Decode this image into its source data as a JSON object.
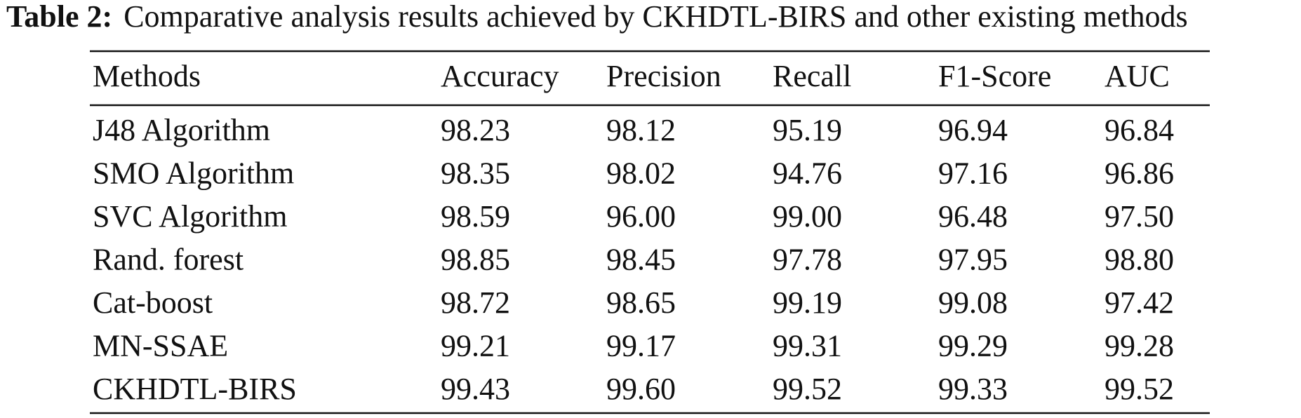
{
  "caption": {
    "label": "Table 2:",
    "text": "Comparative analysis results achieved by CKHDTL-BIRS and other existing methods"
  },
  "table": {
    "columns": [
      "Methods",
      "Accuracy",
      "Precision",
      "Recall",
      "F1-Score",
      "AUC"
    ],
    "rows": [
      [
        "J48 Algorithm",
        "98.23",
        "98.12",
        "95.19",
        "96.94",
        "96.84"
      ],
      [
        "SMO Algorithm",
        "98.35",
        "98.02",
        "94.76",
        "97.16",
        "96.86"
      ],
      [
        "SVC Algorithm",
        "98.59",
        "96.00",
        "99.00",
        "96.48",
        "97.50"
      ],
      [
        "Rand. forest",
        "98.85",
        "98.45",
        "97.78",
        "97.95",
        "98.80"
      ],
      [
        "Cat-boost",
        "98.72",
        "98.65",
        "99.19",
        "99.08",
        "97.42"
      ],
      [
        "MN-SSAE",
        "99.21",
        "99.17",
        "99.31",
        "99.29",
        "99.28"
      ],
      [
        "CKHDTL-BIRS",
        "99.43",
        "99.60",
        "99.52",
        "99.33",
        "99.52"
      ]
    ]
  }
}
